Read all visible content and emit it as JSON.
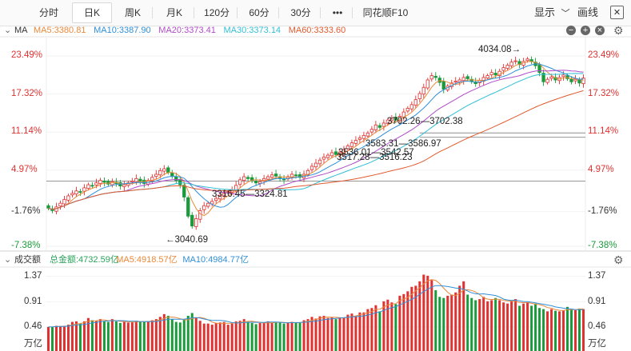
{
  "toolbar": {
    "tabs": [
      {
        "label": "分时",
        "active": false
      },
      {
        "label": "日K",
        "active": true
      },
      {
        "label": "周K",
        "active": false
      },
      {
        "label": "月K",
        "active": false
      },
      {
        "label": "120分",
        "active": false
      },
      {
        "label": "60分",
        "active": false
      },
      {
        "label": "30分",
        "active": false
      },
      {
        "label": "•••",
        "active": false
      },
      {
        "label": "同花顺F10",
        "active": false
      }
    ],
    "display_label": "显示",
    "display_chevron": "﹀",
    "draw_label": "画线",
    "close_icon": "✕",
    "window_icon": "▢"
  },
  "price_legend": {
    "collapse": "⌄",
    "title": "MA",
    "items": [
      {
        "label": "MA5:3380.81",
        "color": "#e8893a"
      },
      {
        "label": "MA10:3387.90",
        "color": "#2f8fd8"
      },
      {
        "label": "MA20:3373.41",
        "color": "#b04ac8"
      },
      {
        "label": "MA30:3373.14",
        "color": "#33bfd6"
      },
      {
        "label": "MA60:3333.60",
        "color": "#e15a2e"
      }
    ],
    "controls": [
      "−",
      "+",
      "×"
    ]
  },
  "volume_legend": {
    "collapse": "⌄",
    "title": "成交额",
    "items": [
      {
        "label": "总金额:4732.59亿",
        "color": "#2aa35a"
      },
      {
        "label": "MA5:4918.57亿",
        "color": "#e8893a"
      },
      {
        "label": "MA10:4984.77亿",
        "color": "#2f8fd8"
      }
    ]
  },
  "colors": {
    "up": "#e03131",
    "down": "#1a9a3a",
    "flat": "#333333"
  },
  "chart_data": [
    {
      "type": "candlestick",
      "title": "",
      "ylim_pct": [
        -7.38,
        23.49
      ],
      "yticks_left": [
        {
          "label": "23.49%",
          "value": 23.49,
          "color": "#e03131"
        },
        {
          "label": "17.32%",
          "value": 17.32,
          "color": "#e03131"
        },
        {
          "label": "11.14%",
          "value": 11.14,
          "color": "#e03131"
        },
        {
          "label": "4.97%",
          "value": 4.97,
          "color": "#e03131"
        },
        {
          "label": "-1.76%",
          "value": -1.76,
          "color": "#333333"
        },
        {
          "label": "-7.38%",
          "value": -7.38,
          "color": "#1a9a3a"
        }
      ],
      "yticks_right": [
        {
          "label": "23.49%",
          "value": 23.49,
          "color": "#e03131"
        },
        {
          "label": "17.32%",
          "value": 17.32,
          "color": "#e03131"
        },
        {
          "label": "11.14%",
          "value": 11.14,
          "color": "#e03131"
        },
        {
          "label": "4.97%",
          "value": 4.97,
          "color": "#e03131"
        },
        {
          "label": "-1.76%",
          "value": -1.76,
          "color": "#333333"
        },
        {
          "label": "-7.38%",
          "value": -7.38,
          "color": "#1a9a3a"
        }
      ],
      "price_anchors": {
        "low": 3040.69,
        "high": 4034.08
      },
      "annotations": [
        {
          "text": "4034.08→",
          "price": 4034.08
        },
        {
          "text": "3702.26—3702.38",
          "price": 3702.3
        },
        {
          "text": "3583.31—3586.97",
          "price": 3585.1
        },
        {
          "text": "3536.01—3542.57",
          "price": 3539.3
        },
        {
          "text": "3517.28—3516.23",
          "price": 3516.7
        },
        {
          "text": "3316.45—3324.81",
          "price": 3320.6
        },
        {
          "text": "←3040.69",
          "price": 3040.69
        }
      ],
      "series": [
        {
          "name": "MA5",
          "value": 3380.81
        },
        {
          "name": "MA10",
          "value": 3387.9
        },
        {
          "name": "MA20",
          "value": 3373.41
        },
        {
          "name": "MA30",
          "value": 3373.14
        },
        {
          "name": "MA60",
          "value": 3333.6
        }
      ],
      "close_pct": [
        -1.2,
        -1.6,
        -1.0,
        -0.4,
        0.2,
        0.8,
        1.2,
        1.6,
        1.4,
        2.1,
        2.6,
        2.4,
        2.9,
        3.3,
        3.0,
        2.7,
        3.1,
        2.8,
        2.4,
        2.6,
        2.9,
        3.2,
        3.6,
        3.2,
        2.8,
        3.3,
        3.8,
        4.3,
        4.9,
        5.2,
        4.6,
        4.0,
        3.3,
        2.6,
        0.6,
        -2.5,
        -4.1,
        -2.9,
        -1.6,
        -0.8,
        -0.4,
        -0.1,
        0.4,
        0.9,
        1.2,
        1.5,
        1.8,
        2.5,
        3.4,
        3.9,
        3.6,
        3.3,
        2.9,
        3.1,
        3.6,
        3.9,
        4.2,
        4.0,
        3.7,
        3.4,
        3.9,
        4.3,
        4.1,
        3.8,
        4.3,
        4.9,
        5.6,
        6.1,
        6.6,
        7.1,
        7.4,
        7.8,
        7.5,
        7.9,
        8.3,
        8.9,
        9.4,
        9.8,
        10.2,
        10.6,
        11.0,
        11.6,
        12.3,
        11.9,
        12.6,
        13.1,
        13.4,
        13.1,
        13.7,
        14.4,
        15.0,
        15.6,
        16.4,
        17.4,
        18.4,
        19.6,
        20.3,
        20.0,
        19.2,
        18.1,
        18.6,
        19.1,
        19.4,
        19.6,
        20.0,
        19.8,
        19.4,
        19.0,
        19.5,
        20.0,
        20.3,
        20.8,
        20.4,
        21.0,
        21.6,
        22.0,
        22.5,
        22.7,
        22.1,
        22.6,
        23.0,
        22.6,
        21.9,
        20.8,
        19.3,
        19.7,
        20.1,
        19.6,
        20.0,
        20.4,
        19.8,
        19.3,
        19.7,
        19.1,
        19.9
      ],
      "levels_pct": [
        {
          "value": 11.0,
          "x_from_index": 93
        },
        {
          "value": 10.3,
          "x_from_index": 93
        },
        {
          "value": 3.2,
          "x_from_index": 0
        }
      ]
    },
    {
      "type": "bar",
      "title": "",
      "unit": "万亿",
      "ylim": [
        0.3,
        1.45
      ],
      "yticks": [
        {
          "label": "1.37",
          "value": 1.37
        },
        {
          "label": "0.91",
          "value": 0.91
        },
        {
          "label": "0.46",
          "value": 0.46
        }
      ],
      "values": [
        0.46,
        0.46,
        0.48,
        0.47,
        0.48,
        0.5,
        0.55,
        0.56,
        0.52,
        0.56,
        0.62,
        0.58,
        0.57,
        0.6,
        0.56,
        0.55,
        0.6,
        0.56,
        0.53,
        0.55,
        0.54,
        0.55,
        0.57,
        0.56,
        0.55,
        0.56,
        0.58,
        0.6,
        0.64,
        0.69,
        0.66,
        0.6,
        0.55,
        0.54,
        0.59,
        0.66,
        0.71,
        0.62,
        0.57,
        0.52,
        0.52,
        0.5,
        0.53,
        0.54,
        0.55,
        0.5,
        0.52,
        0.56,
        0.57,
        0.6,
        0.55,
        0.53,
        0.51,
        0.53,
        0.54,
        0.56,
        0.53,
        0.55,
        0.54,
        0.52,
        0.54,
        0.55,
        0.53,
        0.54,
        0.58,
        0.6,
        0.64,
        0.61,
        0.65,
        0.66,
        0.62,
        0.63,
        0.6,
        0.62,
        0.63,
        0.68,
        0.7,
        0.66,
        0.72,
        0.72,
        0.78,
        0.8,
        0.85,
        0.74,
        0.92,
        0.95,
        0.9,
        0.87,
        1.02,
        1.05,
        1.1,
        1.18,
        1.2,
        1.28,
        1.4,
        1.38,
        1.3,
        1.12,
        1.0,
        0.98,
        1.02,
        1.04,
        1.08,
        1.2,
        1.28,
        1.04,
        0.98,
        0.94,
        0.96,
        1.0,
        0.92,
        0.94,
        0.98,
        0.94,
        0.9,
        0.88,
        0.92,
        0.96,
        0.84,
        0.88,
        0.9,
        0.84,
        0.88,
        0.8,
        0.78,
        0.74,
        0.78,
        0.75,
        0.74,
        0.76,
        0.82,
        0.77,
        0.76,
        0.79,
        0.78
      ]
    }
  ]
}
